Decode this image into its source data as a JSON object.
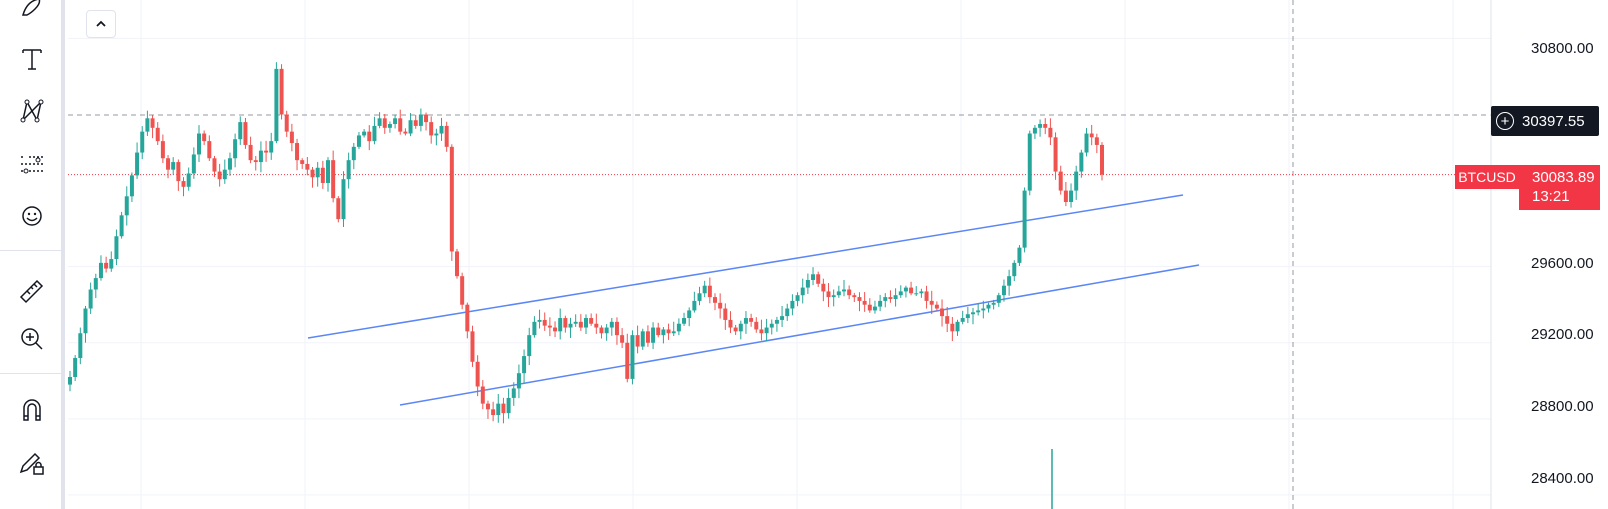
{
  "toolbar": {
    "items": [
      {
        "name": "brush-icon"
      },
      {
        "name": "text-tool-icon"
      },
      {
        "name": "patterns-icon"
      },
      {
        "name": "prediction-measurement-icon"
      },
      {
        "name": "emoji-icon"
      },
      {
        "name": "ruler-icon"
      },
      {
        "name": "zoom-in-icon"
      },
      {
        "name": "magnet-icon"
      },
      {
        "name": "lock-drawings-icon"
      }
    ]
  },
  "collapse_button": {
    "icon": "chevron-up-icon"
  },
  "price_axis": {
    "labels": [
      "30800.00",
      "29600.00",
      "29200.00",
      "28800.00",
      "28400.00"
    ]
  },
  "crosshair": {
    "price": "30397.55"
  },
  "symbol_tag": {
    "symbol": "BTCUSD",
    "last_price": "30083.89",
    "countdown": "13:21"
  },
  "colors": {
    "up": "#26a69a",
    "down": "#ef5350",
    "trendline": "#5b86f5",
    "last_price_tag": "#f23645",
    "crosshair_tag": "#131722"
  },
  "chart_data": {
    "type": "candlestick",
    "symbol": "BTCUSD",
    "ylim": [
      28326,
      31002
    ],
    "y_ticks": [
      30800,
      29600,
      29200,
      28800,
      28400
    ],
    "last_price": 30083.89,
    "crosshair_price": 30397.55,
    "series_close": [
      29020,
      29120,
      29250,
      29380,
      29480,
      29540,
      29620,
      29590,
      29640,
      29760,
      29870,
      29970,
      30080,
      30200,
      30310,
      30380,
      30330,
      30260,
      30170,
      30110,
      30150,
      30050,
      30020,
      30090,
      30190,
      30300,
      30260,
      30170,
      30100,
      30060,
      30110,
      30170,
      30270,
      30360,
      30240,
      30160,
      30150,
      30210,
      30200,
      30260,
      30640,
      30400,
      30310,
      30250,
      30160,
      30140,
      30110,
      30070,
      30120,
      30040,
      30160,
      29960,
      29850,
      30060,
      30160,
      30230,
      30290,
      30310,
      30260,
      30340,
      30380,
      30330,
      30350,
      30380,
      30310,
      30300,
      30370,
      30340,
      30400,
      30360,
      30290,
      30300,
      30340,
      30230,
      29680,
      29550,
      29400,
      29260,
      29100,
      28970,
      28880,
      28850,
      28820,
      28880,
      28830,
      28910,
      28960,
      29040,
      29130,
      29240,
      29310,
      29320,
      29290,
      29280,
      29260,
      29330,
      29280,
      29300,
      29310,
      29280,
      29330,
      29300,
      29280,
      29250,
      29280,
      29310,
      29240,
      29200,
      29010,
      29240,
      29180,
      29260,
      29200,
      29280,
      29240,
      29270,
      29250,
      29260,
      29300,
      29330,
      29370,
      29420,
      29460,
      29500,
      29440,
      29410,
      29380,
      29320,
      29280,
      29260,
      29300,
      29330,
      29310,
      29270,
      29250,
      29280,
      29300,
      29320,
      29340,
      29380,
      29420,
      29450,
      29490,
      29530,
      29560,
      29510,
      29470,
      29440,
      29450,
      29470,
      29480,
      29450,
      29440,
      29420,
      29400,
      29370,
      29390,
      29420,
      29440,
      29430,
      29450,
      29470,
      29490,
      29460,
      29460,
      29470,
      29420,
      29400,
      29380,
      29340,
      29300,
      29260,
      29310,
      29330,
      29350,
      29360,
      29370,
      29380,
      29400,
      29410,
      29450,
      29500,
      29550,
      29620,
      29700,
      30000,
      30300,
      30330,
      30350,
      30330,
      30280,
      30100,
      30000,
      29940,
      30000,
      30100,
      30200,
      30300,
      30280,
      30240,
      30084
    ]
  }
}
